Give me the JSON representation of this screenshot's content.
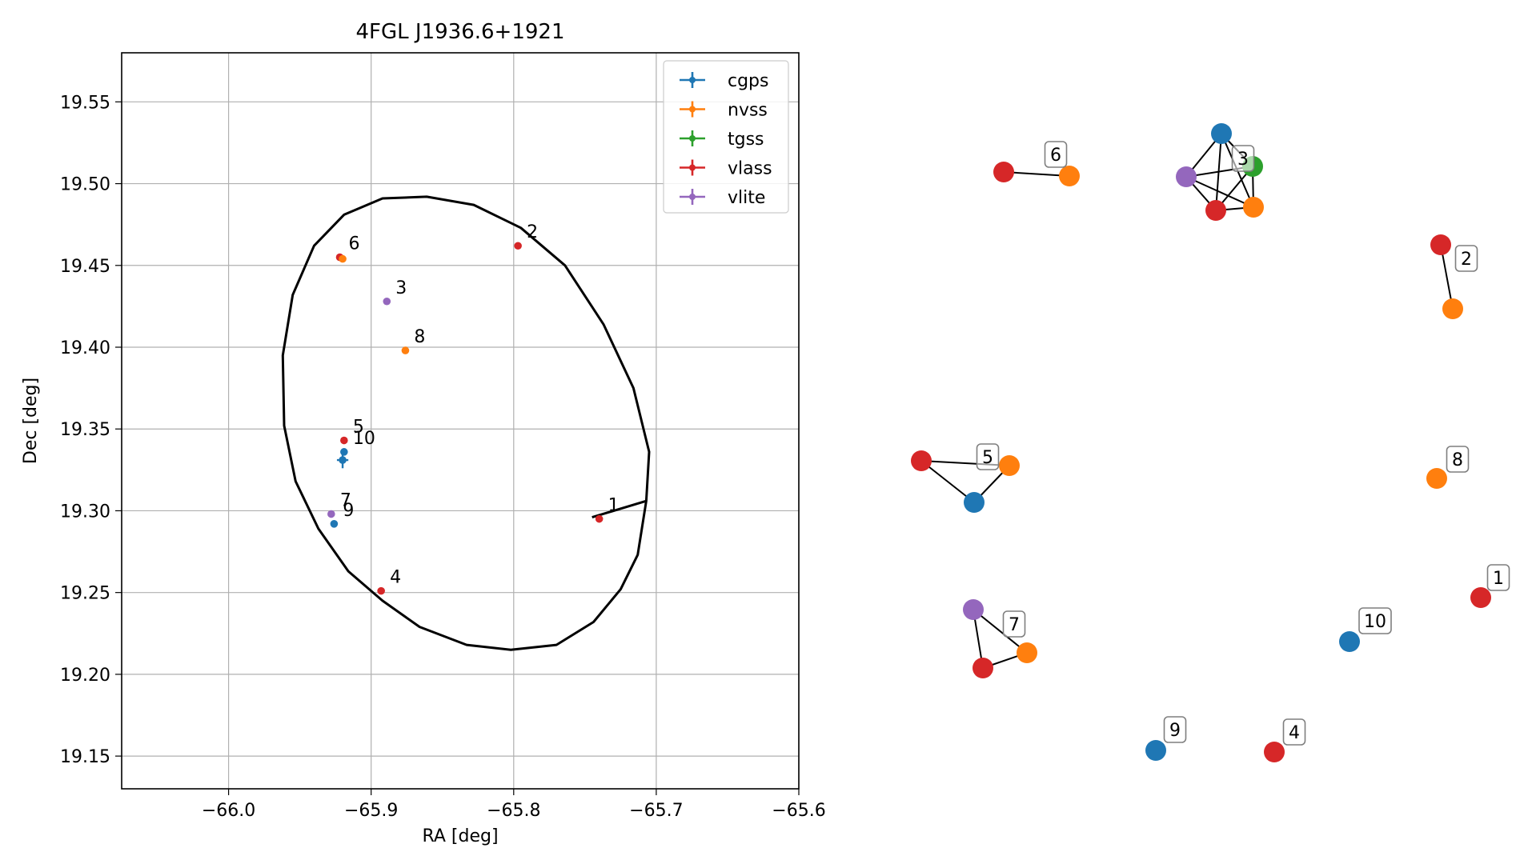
{
  "colors": {
    "cgps": "#1f77b4",
    "nvss": "#ff7f0e",
    "tgss": "#2ca02c",
    "vlass": "#d62728",
    "vlite": "#9467bd"
  },
  "chart_data": [
    {
      "type": "scatter",
      "title": "4FGL J1936.6+1921",
      "xlabel": "RA [deg]",
      "ylabel": "Dec [deg]",
      "xlim": [
        -66.075,
        -65.6
      ],
      "ylim": [
        19.13,
        19.58
      ],
      "xticks": [
        -66.0,
        -65.9,
        -65.8,
        -65.7,
        -65.6
      ],
      "xtick_labels": [
        "−66.0",
        "−65.9",
        "−65.8",
        "−65.7",
        "−65.6"
      ],
      "yticks": [
        19.15,
        19.2,
        19.25,
        19.3,
        19.35,
        19.4,
        19.45,
        19.5,
        19.55
      ],
      "ytick_labels": [
        "19.15",
        "19.20",
        "19.25",
        "19.30",
        "19.35",
        "19.40",
        "19.45",
        "19.50",
        "19.55"
      ],
      "grid": true,
      "legend_position": "top-right",
      "legend": [
        "cgps",
        "nvss",
        "tgss",
        "vlass",
        "vlite"
      ],
      "ellipse": {
        "points": [
          [
            -65.745,
            19.296
          ],
          [
            -65.707,
            19.306
          ],
          [
            -65.705,
            19.336
          ],
          [
            -65.716,
            19.375
          ],
          [
            -65.737,
            19.414
          ],
          [
            -65.764,
            19.45
          ],
          [
            -65.795,
            19.473
          ],
          [
            -65.828,
            19.487
          ],
          [
            -65.861,
            19.492
          ],
          [
            -65.892,
            19.491
          ],
          [
            -65.919,
            19.481
          ],
          [
            -65.94,
            19.462
          ],
          [
            -65.955,
            19.432
          ],
          [
            -65.962,
            19.395
          ],
          [
            -65.961,
            19.352
          ],
          [
            -65.953,
            19.318
          ],
          [
            -65.937,
            19.289
          ],
          [
            -65.916,
            19.263
          ],
          [
            -65.892,
            19.245
          ],
          [
            -65.866,
            19.229
          ],
          [
            -65.833,
            19.218
          ],
          [
            -65.802,
            19.215
          ],
          [
            -65.77,
            19.218
          ],
          [
            -65.744,
            19.232
          ],
          [
            -65.725,
            19.252
          ],
          [
            -65.713,
            19.273
          ],
          [
            -65.707,
            19.306
          ]
        ]
      },
      "points": [
        {
          "survey": "vlass",
          "ra": -65.74,
          "dec": 19.295,
          "label": "1"
        },
        {
          "survey": "vlass",
          "ra": -65.797,
          "dec": 19.462,
          "label": "2"
        },
        {
          "survey": "vlite",
          "ra": -65.889,
          "dec": 19.428,
          "label": "3"
        },
        {
          "survey": "vlass",
          "ra": -65.893,
          "dec": 19.251,
          "label": "4"
        },
        {
          "survey": "vlass",
          "ra": -65.919,
          "dec": 19.343,
          "label": "5"
        },
        {
          "survey": "vlass",
          "ra": -65.922,
          "dec": 19.455,
          "label": "6"
        },
        {
          "survey": "nvss",
          "ra": -65.92,
          "dec": 19.454,
          "label": ""
        },
        {
          "survey": "vlite",
          "ra": -65.928,
          "dec": 19.298,
          "label": "7"
        },
        {
          "survey": "nvss",
          "ra": -65.876,
          "dec": 19.398,
          "label": "8"
        },
        {
          "survey": "cgps",
          "ra": -65.926,
          "dec": 19.292,
          "label": "9"
        },
        {
          "survey": "cgps",
          "ra": -65.919,
          "dec": 19.336,
          "label": "10"
        },
        {
          "survey": "cgps",
          "ra": -65.92,
          "dec": 19.331,
          "label": "",
          "err_ra": 0.004,
          "err_dec": 0.005
        }
      ]
    },
    {
      "type": "network",
      "nodes": [
        {
          "id": "c1",
          "survey": "vlass",
          "label": "1"
        },
        {
          "id": "c2a",
          "survey": "vlass",
          "label": "2"
        },
        {
          "id": "c2b",
          "survey": "nvss",
          "label": ""
        },
        {
          "id": "c3a",
          "survey": "cgps",
          "label": ""
        },
        {
          "id": "c3b",
          "survey": "tgss",
          "label": "3"
        },
        {
          "id": "c3c",
          "survey": "vlite",
          "label": ""
        },
        {
          "id": "c3d",
          "survey": "vlass",
          "label": ""
        },
        {
          "id": "c3e",
          "survey": "nvss",
          "label": ""
        },
        {
          "id": "c4",
          "survey": "vlass",
          "label": "4"
        },
        {
          "id": "c5a",
          "survey": "vlass",
          "label": ""
        },
        {
          "id": "c5b",
          "survey": "nvss",
          "label": "5"
        },
        {
          "id": "c5c",
          "survey": "cgps",
          "label": ""
        },
        {
          "id": "c6a",
          "survey": "vlass",
          "label": ""
        },
        {
          "id": "c6b",
          "survey": "nvss",
          "label": "6"
        },
        {
          "id": "c7a",
          "survey": "vlite",
          "label": ""
        },
        {
          "id": "c7b",
          "survey": "vlass",
          "label": ""
        },
        {
          "id": "c7c",
          "survey": "nvss",
          "label": "7"
        },
        {
          "id": "c8",
          "survey": "nvss",
          "label": "8"
        },
        {
          "id": "c9",
          "survey": "cgps",
          "label": "9"
        },
        {
          "id": "c10",
          "survey": "cgps",
          "label": "10"
        }
      ],
      "edges": [
        [
          "c2a",
          "c2b"
        ],
        [
          "c3a",
          "c3b"
        ],
        [
          "c3a",
          "c3c"
        ],
        [
          "c3a",
          "c3d"
        ],
        [
          "c3a",
          "c3e"
        ],
        [
          "c3b",
          "c3c"
        ],
        [
          "c3b",
          "c3d"
        ],
        [
          "c3b",
          "c3e"
        ],
        [
          "c3c",
          "c3d"
        ],
        [
          "c3c",
          "c3e"
        ],
        [
          "c3d",
          "c3e"
        ],
        [
          "c5a",
          "c5b"
        ],
        [
          "c5a",
          "c5c"
        ],
        [
          "c5b",
          "c5c"
        ],
        [
          "c6a",
          "c6b"
        ],
        [
          "c7a",
          "c7b"
        ],
        [
          "c7a",
          "c7c"
        ],
        [
          "c7b",
          "c7c"
        ]
      ]
    }
  ]
}
